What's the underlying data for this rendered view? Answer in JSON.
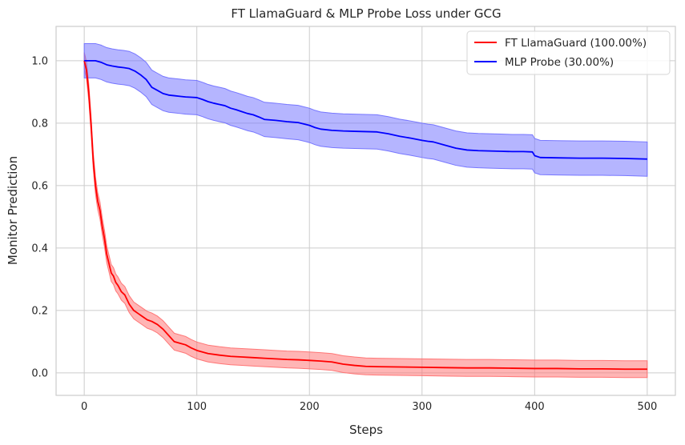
{
  "chart_data": {
    "type": "line",
    "title": "FT LlamaGuard & MLP Probe Loss under GCG",
    "xlabel": "Steps",
    "ylabel": "Monitor Prediction",
    "xlim": [
      -25,
      525
    ],
    "ylim": [
      -0.072,
      1.11
    ],
    "xticks": [
      0,
      100,
      200,
      300,
      400,
      500
    ],
    "yticks": [
      0.0,
      0.2,
      0.4,
      0.6,
      0.8,
      1.0
    ],
    "ytick_labels": [
      "0.0",
      "0.2",
      "0.4",
      "0.6",
      "0.8",
      "1.0"
    ],
    "grid": true,
    "legend_position": "top-right",
    "series": [
      {
        "name": "FT LlamaGuard (100.00%)",
        "color": "#ff0000",
        "band_color": "#ff6b6b",
        "band_halfwidth": 0.027,
        "x": [
          0,
          2,
          4,
          6,
          8,
          10,
          12,
          14,
          16,
          18,
          20,
          22,
          24,
          26,
          28,
          30,
          33,
          36,
          40,
          44,
          48,
          52,
          56,
          60,
          65,
          70,
          75,
          80,
          85,
          90,
          95,
          100,
          110,
          120,
          130,
          140,
          150,
          160,
          170,
          180,
          190,
          200,
          210,
          220,
          230,
          240,
          250,
          260,
          280,
          300,
          320,
          340,
          360,
          380,
          400,
          420,
          440,
          460,
          480,
          500
        ],
        "y": [
          1.0,
          0.97,
          0.9,
          0.8,
          0.68,
          0.6,
          0.55,
          0.52,
          0.47,
          0.43,
          0.38,
          0.35,
          0.32,
          0.31,
          0.29,
          0.28,
          0.26,
          0.25,
          0.22,
          0.2,
          0.19,
          0.18,
          0.17,
          0.165,
          0.155,
          0.14,
          0.12,
          0.1,
          0.095,
          0.09,
          0.08,
          0.072,
          0.062,
          0.057,
          0.053,
          0.051,
          0.049,
          0.047,
          0.045,
          0.043,
          0.042,
          0.04,
          0.038,
          0.035,
          0.028,
          0.024,
          0.021,
          0.02,
          0.019,
          0.018,
          0.017,
          0.016,
          0.016,
          0.015,
          0.014,
          0.014,
          0.013,
          0.013,
          0.012,
          0.012
        ]
      },
      {
        "name": "MLP Probe (30.00%)",
        "color": "#0000ff",
        "band_color": "#6b6bff",
        "band_halfwidth": 0.055,
        "x": [
          0,
          5,
          10,
          15,
          20,
          25,
          30,
          35,
          40,
          45,
          50,
          55,
          60,
          65,
          70,
          75,
          80,
          85,
          90,
          95,
          100,
          105,
          110,
          115,
          120,
          125,
          130,
          135,
          140,
          145,
          150,
          155,
          160,
          170,
          180,
          190,
          200,
          205,
          210,
          220,
          230,
          240,
          250,
          260,
          270,
          280,
          290,
          300,
          305,
          310,
          320,
          330,
          340,
          350,
          360,
          370,
          380,
          390,
          398,
          400,
          405,
          420,
          440,
          460,
          480,
          500
        ],
        "y": [
          1.0,
          1.0,
          1.0,
          0.995,
          0.987,
          0.983,
          0.98,
          0.978,
          0.975,
          0.967,
          0.955,
          0.94,
          0.915,
          0.905,
          0.895,
          0.89,
          0.888,
          0.886,
          0.884,
          0.883,
          0.882,
          0.876,
          0.869,
          0.864,
          0.86,
          0.856,
          0.848,
          0.843,
          0.837,
          0.831,
          0.827,
          0.82,
          0.812,
          0.809,
          0.805,
          0.802,
          0.793,
          0.786,
          0.781,
          0.777,
          0.775,
          0.774,
          0.773,
          0.772,
          0.766,
          0.758,
          0.752,
          0.745,
          0.742,
          0.74,
          0.73,
          0.72,
          0.714,
          0.712,
          0.711,
          0.71,
          0.709,
          0.709,
          0.708,
          0.696,
          0.69,
          0.689,
          0.688,
          0.688,
          0.687,
          0.685
        ]
      }
    ]
  }
}
